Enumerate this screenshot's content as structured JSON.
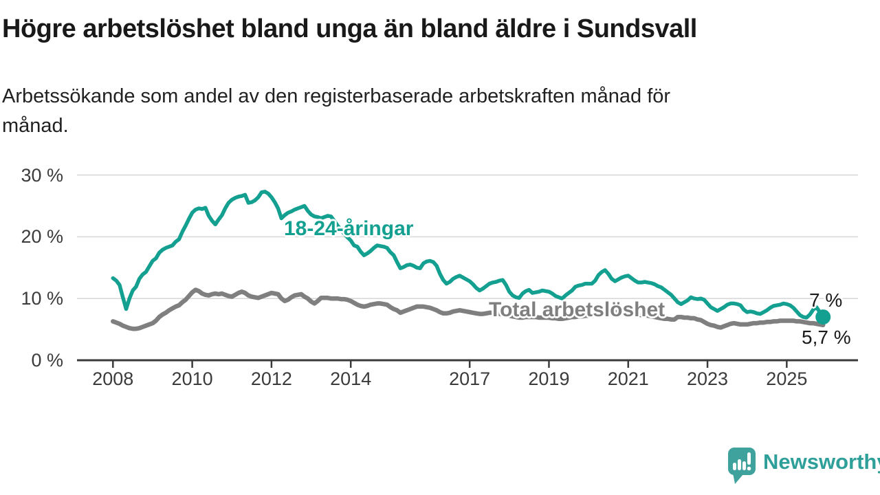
{
  "title": "Högre arbetslöshet bland unga än bland äldre i Sundsvall",
  "subtitle": {
    "line1": "Arbetssökande som andel av den registerbaserade arbetskraften månad för",
    "line2": "månad."
  },
  "branding": {
    "name": "Newsworthy",
    "icon": "speech-bubble-bar-chart",
    "color": "#3fa29c"
  },
  "colors": {
    "young": "#14a090",
    "total": "#7f7f7f",
    "grid": "#d9d9d9",
    "axis": "#3b3b3b",
    "text": "#191919"
  },
  "chart_data": {
    "type": "line",
    "title": "Högre arbetslöshet bland unga än bland äldre i Sundsvall",
    "subtitle": "Arbetssökande som andel av den registerbaserade arbetskraften månad för månad.",
    "unit": "%",
    "frequency": "monthly",
    "x_start_year": 2008,
    "x_end": "2025-12",
    "ylim": [
      0,
      30
    ],
    "grid": "horizontal-only",
    "legend": "inline-labels",
    "y_ticks": [
      {
        "value": 30,
        "label": "30 %"
      },
      {
        "value": 20,
        "label": "20 %"
      },
      {
        "value": 10,
        "label": "10 %"
      },
      {
        "value": 0,
        "label": "0 %"
      }
    ],
    "x_ticks": [
      2008,
      2010,
      2012,
      2014,
      2017,
      2019,
      2021,
      2023,
      2025
    ],
    "series": [
      {
        "name": "18-24-åringar",
        "color": "#14a090",
        "end_label": "7 %",
        "end_dot": true,
        "values": [
          13.3,
          12.9,
          12.2,
          10.2,
          8.3,
          10.0,
          11.3,
          11.9,
          13.2,
          13.9,
          14.3,
          15.2,
          16.1,
          16.5,
          17.4,
          17.9,
          18.2,
          18.4,
          18.6,
          19.2,
          19.6,
          20.8,
          21.8,
          22.9,
          23.9,
          24.4,
          24.6,
          24.5,
          24.7,
          23.4,
          22.6,
          22.0,
          22.8,
          23.5,
          24.6,
          25.5,
          26.0,
          26.3,
          26.5,
          26.6,
          26.8,
          25.5,
          25.6,
          25.9,
          26.4,
          27.2,
          27.3,
          27.0,
          26.4,
          25.6,
          24.6,
          23.0,
          23.5,
          23.9,
          24.1,
          24.4,
          24.6,
          24.8,
          25.0,
          24.2,
          23.6,
          23.3,
          23.2,
          23.0,
          23.2,
          23.4,
          23.3,
          22.6,
          21.8,
          21.2,
          20.5,
          19.9,
          19.4,
          18.6,
          18.4,
          17.6,
          17.0,
          17.3,
          17.7,
          18.2,
          18.6,
          18.5,
          18.4,
          18.2,
          17.5,
          17.0,
          15.9,
          14.9,
          15.1,
          15.4,
          15.5,
          15.3,
          15.0,
          14.9,
          15.7,
          16.0,
          16.1,
          15.9,
          15.3,
          14.0,
          13.0,
          12.4,
          12.7,
          13.2,
          13.5,
          13.7,
          13.4,
          13.1,
          12.8,
          12.3,
          11.7,
          11.3,
          11.6,
          12.0,
          12.4,
          12.6,
          12.7,
          12.9,
          13.0,
          12.2,
          11.1,
          10.5,
          10.2,
          10.1,
          10.8,
          11.2,
          11.4,
          10.9,
          11.0,
          11.1,
          11.3,
          11.2,
          11.1,
          10.8,
          10.4,
          10.2,
          10.0,
          10.5,
          10.9,
          11.3,
          11.9,
          12.1,
          12.2,
          12.4,
          12.4,
          12.4,
          12.9,
          13.8,
          14.3,
          14.6,
          14.0,
          13.2,
          12.8,
          13.1,
          13.4,
          13.6,
          13.7,
          13.3,
          12.9,
          12.6,
          12.6,
          12.7,
          12.6,
          12.5,
          12.3,
          12.0,
          11.8,
          11.4,
          11.0,
          10.6,
          10.0,
          9.4,
          9.1,
          9.4,
          9.7,
          10.2,
          10.0,
          9.9,
          10.0,
          9.8,
          9.2,
          8.6,
          8.3,
          8.0,
          8.3,
          8.6,
          9.0,
          9.2,
          9.2,
          9.1,
          8.9,
          8.2,
          7.8,
          7.9,
          7.8,
          7.6,
          7.5,
          7.8,
          8.1,
          8.5,
          8.8,
          8.9,
          9.0,
          9.2,
          9.1,
          8.9,
          8.5,
          7.9,
          7.3,
          7.0,
          6.9,
          7.4,
          8.2,
          8.6,
          7.8,
          7.0
        ]
      },
      {
        "name": "Total arbetslöshet",
        "color": "#7f7f7f",
        "end_label": "5,7 %",
        "end_dot": false,
        "values": [
          6.3,
          6.1,
          5.9,
          5.6,
          5.4,
          5.2,
          5.1,
          5.1,
          5.2,
          5.4,
          5.6,
          5.8,
          6.0,
          6.4,
          7.0,
          7.4,
          7.7,
          8.1,
          8.4,
          8.7,
          8.9,
          9.4,
          9.8,
          10.4,
          11.0,
          11.4,
          11.2,
          10.8,
          10.6,
          10.5,
          10.7,
          10.8,
          10.7,
          10.8,
          10.6,
          10.4,
          10.3,
          10.6,
          10.9,
          11.1,
          10.9,
          10.5,
          10.3,
          10.2,
          10.1,
          10.3,
          10.5,
          10.7,
          10.9,
          10.8,
          10.7,
          10.0,
          9.6,
          9.8,
          10.2,
          10.5,
          10.6,
          10.7,
          10.3,
          10.0,
          9.5,
          9.2,
          9.6,
          10.1,
          10.1,
          10.1,
          10.0,
          10.0,
          10.0,
          9.9,
          9.9,
          9.8,
          9.6,
          9.3,
          9.0,
          8.8,
          8.7,
          8.8,
          9.0,
          9.1,
          9.2,
          9.2,
          9.1,
          9.0,
          8.6,
          8.3,
          8.1,
          7.7,
          7.9,
          8.1,
          8.3,
          8.5,
          8.7,
          8.7,
          8.7,
          8.6,
          8.5,
          8.3,
          8.1,
          7.8,
          7.6,
          7.6,
          7.7,
          7.9,
          8.0,
          8.1,
          8.0,
          7.9,
          7.8,
          7.7,
          7.6,
          7.5,
          7.5,
          7.6,
          7.7,
          7.7,
          7.6,
          7.5,
          7.4,
          7.3,
          7.2,
          7.1,
          7.0,
          6.9,
          6.9,
          7.0,
          7.0,
          7.0,
          7.0,
          6.9,
          6.9,
          6.9,
          6.9,
          6.8,
          6.8,
          6.7,
          6.7,
          6.8,
          6.9,
          7.0,
          7.0,
          7.1,
          7.1,
          7.2,
          7.2,
          7.2,
          7.4,
          7.7,
          7.9,
          8.0,
          8.0,
          7.9,
          7.8,
          7.8,
          7.7,
          7.7,
          7.7,
          7.6,
          7.5,
          7.4,
          7.3,
          7.3,
          7.2,
          7.1,
          7.0,
          6.9,
          6.8,
          6.7,
          6.7,
          6.6,
          6.6,
          7.0,
          7.0,
          6.9,
          6.9,
          6.8,
          6.8,
          6.6,
          6.5,
          6.2,
          5.9,
          5.7,
          5.6,
          5.4,
          5.3,
          5.5,
          5.7,
          5.9,
          6.0,
          5.9,
          5.8,
          5.8,
          5.8,
          5.9,
          6.0,
          6.0,
          6.1,
          6.1,
          6.2,
          6.2,
          6.3,
          6.3,
          6.4,
          6.4,
          6.4,
          6.4,
          6.4,
          6.3,
          6.3,
          6.2,
          6.1,
          6.0,
          6.0,
          5.9,
          5.8,
          5.7
        ]
      }
    ]
  }
}
